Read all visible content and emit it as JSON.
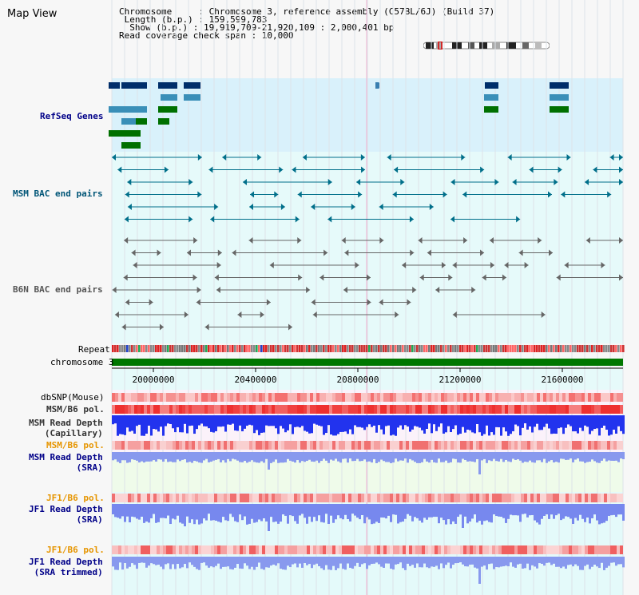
{
  "page": {
    "title": "Map View"
  },
  "info": {
    "chromosome": "Chromosome     : Chromosome 3, reference assembly (C57BL/6J) (Build 37)",
    "length": " Length (b.p.) : 159,599,783",
    "show": "  Show (b.p.) : 19,919,709-21,920,109 : 2,000,401 bp",
    "coverage": "Read coverage check span : 10,000"
  },
  "tracks": {
    "refseq": "RefSeq Genes",
    "msm_bac": "MSM BAC end pairs",
    "b6n_bac": "B6N BAC end pairs",
    "repeat": "Repeat",
    "chromosome": "chromosome 3",
    "dbsnp": "dbSNP(Mouse)",
    "msm_pol_1": "MSM/B6 pol.",
    "msm_depth_cap": "MSM Read Depth\n(Capillary)",
    "msm_pol_2": "MSM/B6 pol.",
    "msm_depth_sra": "MSM Read Depth\n(SRA)",
    "jf1_pol_1": "JF1/B6 pol.",
    "jf1_depth_sra": "JF1 Read Depth\n(SRA)",
    "jf1_pol_2": "JF1/B6 pol.",
    "jf1_depth_trim": "JF1 Read Depth\n(SRA trimmed)"
  },
  "axis": {
    "ticks": [
      "20000000",
      "20400000",
      "20800000",
      "21200000",
      "21600000"
    ]
  },
  "colors": {
    "refseq_bg": "#d9f1fb",
    "track_bg": "#e6fafa",
    "chromosome": "#007700",
    "depth_blue": "#2233ee",
    "depth_light": "#8899ee",
    "pol_red": "#ee3333"
  }
}
